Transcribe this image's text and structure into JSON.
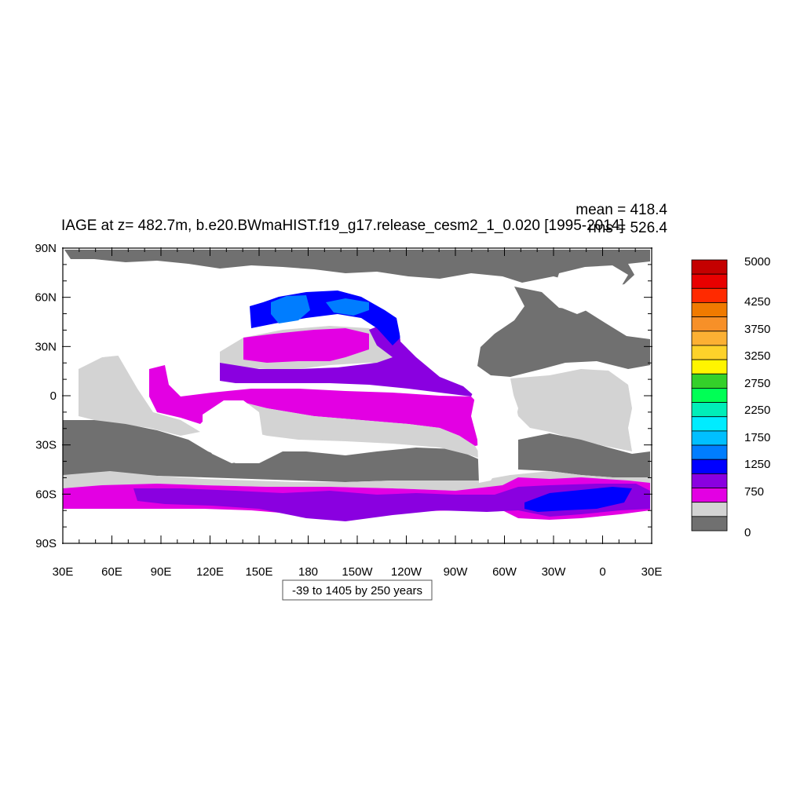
{
  "title": "IAGE at z= 482.7m, b.e20.BWmaHIST.f19_g17.release_cesm2_1_0.020 [1995-2014]",
  "stats": {
    "mean": "mean = 418.4",
    "rms": "rms = 526.4"
  },
  "lat_labels": [
    "90N",
    "60N",
    "30N",
    "0",
    "30S",
    "60S",
    "90S"
  ],
  "lon_labels": [
    "30E",
    "60E",
    "90E",
    "120E",
    "150E",
    "180",
    "150W",
    "120W",
    "90W",
    "60W",
    "30W",
    "0",
    "30E"
  ],
  "contour_info": "-39 to 1405 by 250 years",
  "colorbar": {
    "labels": [
      "5000",
      "4250",
      "3750",
      "3250",
      "2750",
      "2250",
      "1750",
      "1250",
      "750",
      "0"
    ],
    "colors": [
      "#c40000",
      "#e80000",
      "#ff2a00",
      "#f07a00",
      "#f79028",
      "#fcb033",
      "#fdd22a",
      "#fff500",
      "#34d02a",
      "#00ff55",
      "#00eeb8",
      "#00ecff",
      "#00bfff",
      "#007dff",
      "#0000ff",
      "#8a00e0",
      "#e300e3",
      "#d3d3d3",
      "#707070"
    ]
  },
  "colors": {
    "land": "#ffffff",
    "continent_fill": "#707070",
    "light": "#d3d3d3",
    "magenta": "#e300e3",
    "purple": "#8a00e0",
    "blue": "#0000ff",
    "lightblue": "#007dff"
  }
}
